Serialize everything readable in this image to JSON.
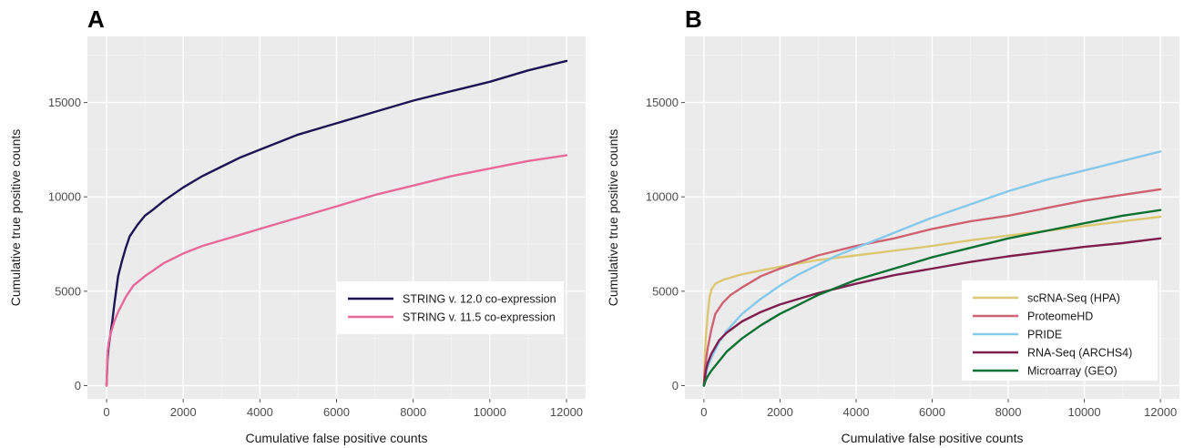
{
  "chart_data": [
    {
      "type": "line",
      "panel_label": "A",
      "xlabel": "Cumulative false positive counts",
      "ylabel": "Cumulative true positive counts",
      "xlim": [
        -500,
        12500
      ],
      "ylim": [
        -700,
        18500
      ],
      "xticks": [
        0,
        2000,
        4000,
        6000,
        8000,
        10000,
        12000
      ],
      "yticks": [
        0,
        5000,
        10000,
        15000
      ],
      "grid": true,
      "legend_position": "bottom-right",
      "series": [
        {
          "name": "STRING v. 12.0 co-expression",
          "color": "#1c1554",
          "x": [
            0,
            25,
            50,
            100,
            150,
            200,
            300,
            400,
            500,
            600,
            800,
            1000,
            1200,
            1500,
            2000,
            2500,
            3000,
            3500,
            4000,
            5000,
            6000,
            7000,
            8000,
            9000,
            10000,
            11000,
            12000
          ],
          "y": [
            0,
            1400,
            2000,
            2700,
            3400,
            4300,
            5800,
            6600,
            7300,
            7900,
            8500,
            9000,
            9300,
            9800,
            10500,
            11100,
            11600,
            12100,
            12500,
            13300,
            13900,
            14500,
            15100,
            15600,
            16100,
            16700,
            17200
          ]
        },
        {
          "name": "STRING v. 11.5 co-expression",
          "color": "#e8699a",
          "x": [
            0,
            25,
            50,
            100,
            200,
            300,
            400,
            500,
            700,
            1000,
            1500,
            2000,
            2500,
            3000,
            3500,
            4000,
            5000,
            6000,
            7000,
            8000,
            9000,
            10000,
            11000,
            12000
          ],
          "y": [
            0,
            1800,
            2200,
            2700,
            3400,
            3900,
            4300,
            4700,
            5300,
            5800,
            6500,
            7000,
            7400,
            7700,
            8000,
            8300,
            8900,
            9500,
            10100,
            10600,
            11100,
            11500,
            11900,
            12200
          ]
        }
      ]
    },
    {
      "type": "line",
      "panel_label": "B",
      "xlabel": "Cumulative false positive counts",
      "ylabel": "Cumulative true positive counts",
      "xlim": [
        -500,
        12500
      ],
      "ylim": [
        -700,
        18500
      ],
      "xticks": [
        0,
        2000,
        4000,
        6000,
        8000,
        10000,
        12000
      ],
      "yticks": [
        0,
        5000,
        10000,
        15000
      ],
      "grid": true,
      "legend_position": "bottom-right",
      "series": [
        {
          "name": "scRNA-Seq (HPA)",
          "color": "#dcc874",
          "x": [
            0,
            25,
            50,
            100,
            150,
            200,
            300,
            500,
            1000,
            2000,
            3000,
            4000,
            5000,
            6000,
            7000,
            8000,
            9000,
            10000,
            11000,
            12000
          ],
          "y": [
            0,
            1600,
            2600,
            3800,
            4700,
            5100,
            5400,
            5600,
            5900,
            6300,
            6650,
            6900,
            7150,
            7400,
            7700,
            7950,
            8200,
            8450,
            8700,
            8950
          ]
        },
        {
          "name": "ProteomeHD",
          "color": "#cf6373",
          "x": [
            0,
            25,
            50,
            100,
            200,
            300,
            500,
            700,
            1000,
            1500,
            2000,
            3000,
            4000,
            5000,
            6000,
            7000,
            8000,
            9000,
            10000,
            11000,
            12000
          ],
          "y": [
            0,
            800,
            1300,
            2000,
            3000,
            3800,
            4400,
            4800,
            5200,
            5800,
            6200,
            6900,
            7400,
            7800,
            8300,
            8700,
            9000,
            9400,
            9800,
            10100,
            10400
          ]
        },
        {
          "name": "PRIDE",
          "color": "#86c9ea",
          "x": [
            0,
            50,
            100,
            200,
            400,
            600,
            1000,
            1500,
            2000,
            2500,
            3000,
            3500,
            4000,
            5000,
            6000,
            7000,
            8000,
            9000,
            10000,
            11000,
            12000
          ],
          "y": [
            0,
            600,
            1000,
            1500,
            2300,
            2900,
            3800,
            4600,
            5300,
            5900,
            6400,
            6900,
            7300,
            8100,
            8900,
            9600,
            10300,
            10900,
            11400,
            11900,
            12400
          ]
        },
        {
          "name": "RNA-Seq (ARCHS4)",
          "color": "#7e1f4e",
          "x": [
            0,
            50,
            100,
            200,
            400,
            600,
            1000,
            1500,
            2000,
            2500,
            3000,
            4000,
            5000,
            6000,
            7000,
            8000,
            9000,
            10000,
            11000,
            12000
          ],
          "y": [
            0,
            800,
            1200,
            1700,
            2400,
            2800,
            3400,
            3900,
            4300,
            4600,
            4900,
            5400,
            5850,
            6200,
            6550,
            6850,
            7100,
            7350,
            7550,
            7800
          ]
        },
        {
          "name": "Microarray (GEO)",
          "color": "#0d7033",
          "x": [
            0,
            50,
            100,
            200,
            400,
            600,
            1000,
            1500,
            2000,
            2500,
            3000,
            4000,
            5000,
            6000,
            7000,
            8000,
            9000,
            10000,
            11000,
            12000
          ],
          "y": [
            0,
            300,
            500,
            800,
            1300,
            1800,
            2500,
            3200,
            3800,
            4300,
            4800,
            5600,
            6200,
            6800,
            7300,
            7800,
            8200,
            8600,
            9000,
            9300
          ]
        }
      ]
    }
  ]
}
